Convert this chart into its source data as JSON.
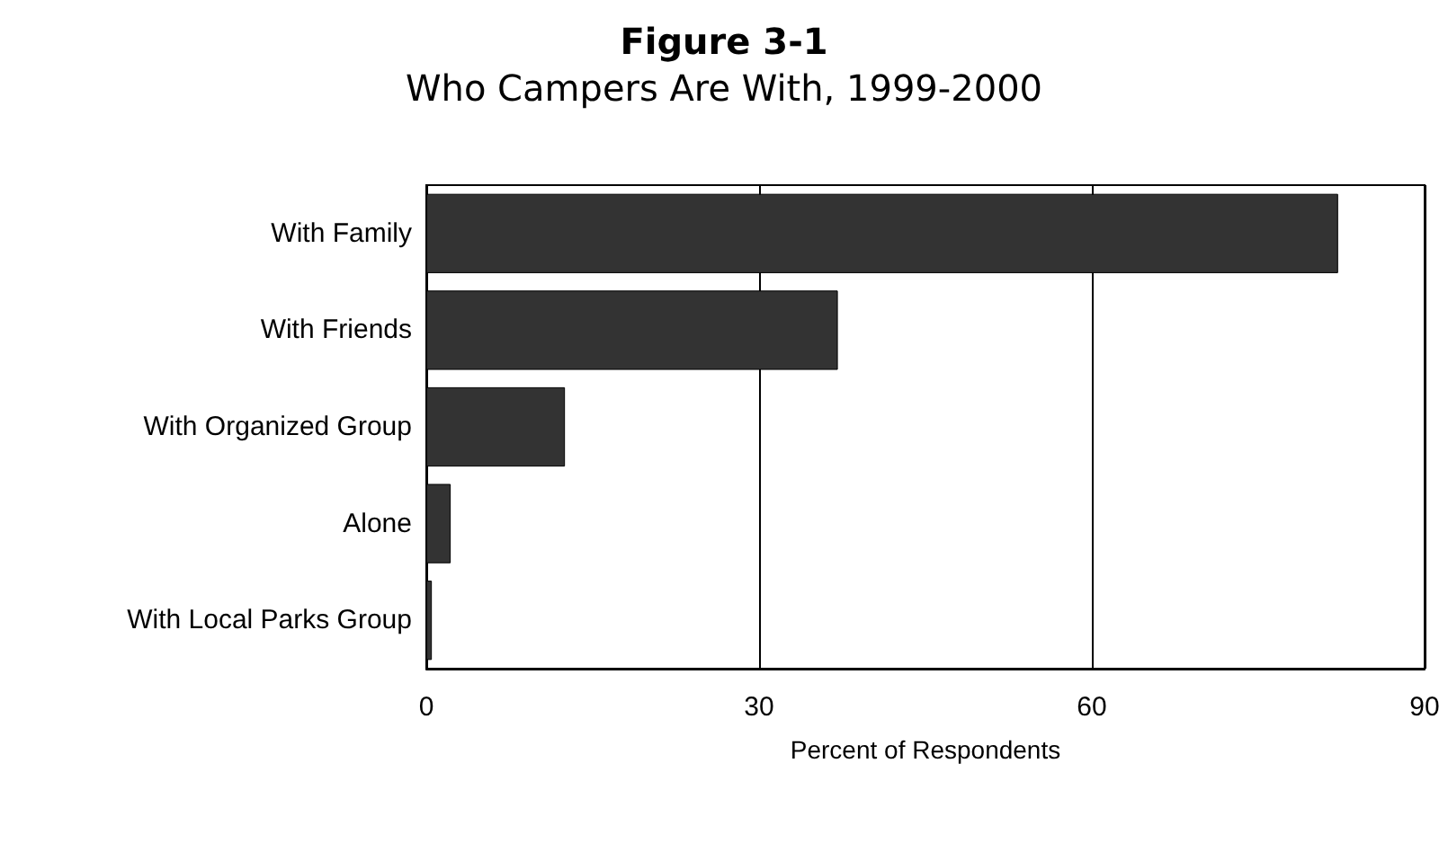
{
  "chart_data": {
    "type": "bar",
    "orientation": "horizontal",
    "title": "Figure 3-1",
    "subtitle": "Who Campers Are With, 1999-2000",
    "xlabel": "Percent of Respondents",
    "categories": [
      "With Family",
      "With Friends",
      "With Organized Group",
      "Alone",
      "With Local Parks Group"
    ],
    "values": [
      82.2,
      37.1,
      12.5,
      2.2,
      0.5
    ],
    "color": "#333333",
    "xlim": [
      0,
      90
    ],
    "xticks": [
      0,
      30,
      60,
      90
    ],
    "grid": "x"
  }
}
